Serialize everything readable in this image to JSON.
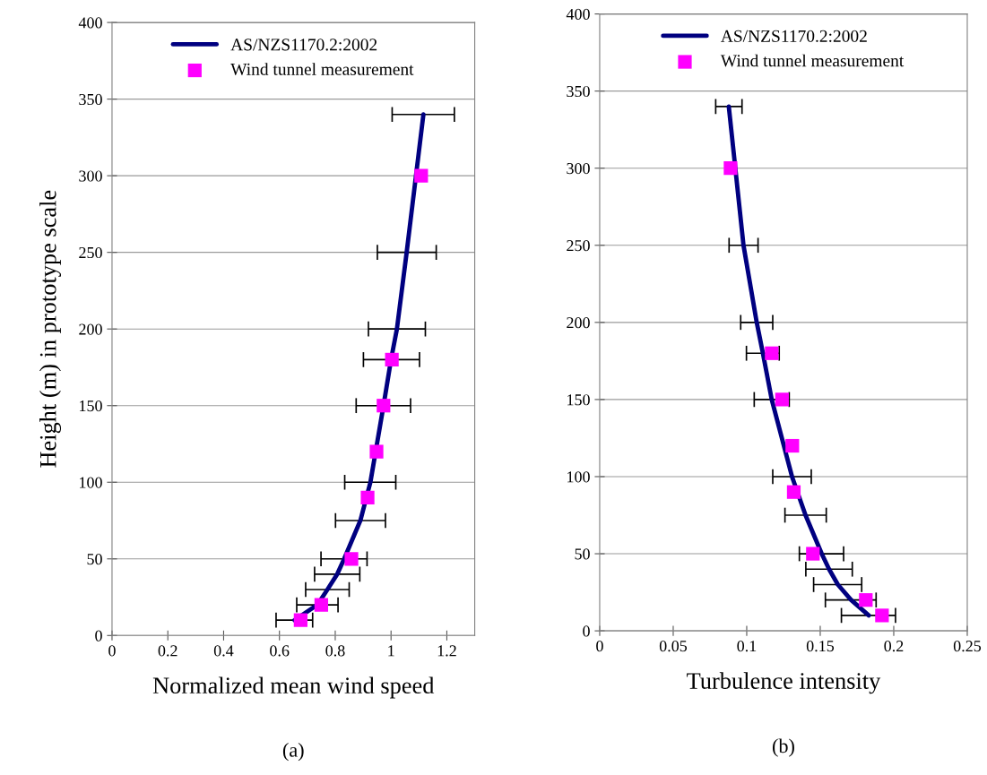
{
  "chart_data": [
    {
      "type": "line",
      "xlabel": "Normalized mean wind speed",
      "ylabel": "Height (m) in prototype scale",
      "annotations": [
        "(a)"
      ],
      "xlim": [
        0,
        1.3
      ],
      "xticks": [
        0,
        0.2,
        0.4,
        0.6,
        0.8,
        1,
        1.2
      ],
      "ylim": [
        0,
        400
      ],
      "yticks": [
        0,
        50,
        100,
        150,
        200,
        250,
        300,
        350,
        400
      ],
      "grid": "y",
      "legend": "top",
      "series": [
        {
          "name": "AS/NZS1170.2:2002",
          "color": "#000080",
          "marker": "none",
          "line_style": "solid",
          "x": [
            0.654,
            0.736,
            0.772,
            0.807,
            0.832,
            0.89,
            0.926,
            0.973,
            1.0,
            1.021,
            1.056,
            1.116
          ],
          "values": [
            10,
            20,
            30,
            40,
            50,
            75,
            100,
            150,
            180,
            200,
            250,
            340
          ],
          "xerrors": [
            [
              0.588,
              0.719
            ],
            [
              0.662,
              0.81
            ],
            [
              0.694,
              0.85
            ],
            [
              0.726,
              0.888
            ],
            [
              0.749,
              0.914
            ],
            [
              0.801,
              0.98
            ],
            [
              0.834,
              1.017
            ],
            [
              0.875,
              1.07
            ],
            [
              0.901,
              1.102
            ],
            [
              0.919,
              1.123
            ],
            [
              0.951,
              1.162
            ],
            [
              1.004,
              1.227
            ]
          ]
        },
        {
          "name": "Wind tunnel measurement",
          "type": "scatter",
          "color": "#ff00ff",
          "marker": "square",
          "x": [
            0.676,
            0.75,
            0.858,
            0.916,
            0.948,
            0.973,
            1.003,
            1.108
          ],
          "values": [
            10,
            20,
            50,
            90,
            120,
            150,
            180,
            300
          ]
        }
      ]
    },
    {
      "type": "line",
      "xlabel": "Turbulence intensity",
      "annotations": [
        "(b)"
      ],
      "xlim": [
        0,
        0.25
      ],
      "xticks": [
        0,
        0.05,
        0.1,
        0.15,
        0.2,
        0.25
      ],
      "ylim": [
        0,
        400
      ],
      "yticks": [
        0,
        50,
        100,
        150,
        200,
        250,
        300,
        350,
        400
      ],
      "grid": "y",
      "legend": "top",
      "series": [
        {
          "name": "AS/NZS1170.2:2002",
          "color": "#000080",
          "marker": "none",
          "line_style": "solid",
          "x": [
            0.183,
            0.171,
            0.162,
            0.156,
            0.151,
            0.14,
            0.1308,
            0.117,
            0.111,
            0.1068,
            0.0978,
            0.0878
          ],
          "values": [
            10,
            20,
            30,
            40,
            50,
            75,
            100,
            150,
            180,
            200,
            250,
            340
          ],
          "xerrors": [
            [
              0.1644,
              0.2012
            ],
            [
              0.1535,
              0.188
            ],
            [
              0.1455,
              0.1782
            ],
            [
              0.1402,
              0.1718
            ],
            [
              0.1358,
              0.1659
            ],
            [
              0.126,
              0.1541
            ],
            [
              0.1177,
              0.1439
            ],
            [
              0.1051,
              0.1289
            ],
            [
              0.0998,
              0.1221
            ],
            [
              0.0959,
              0.1177
            ],
            [
              0.088,
              0.1077
            ],
            [
              0.0789,
              0.0968
            ]
          ]
        },
        {
          "name": "Wind tunnel measurement",
          "type": "scatter",
          "color": "#ff00ff",
          "marker": "square",
          "x": [
            0.192,
            0.181,
            0.145,
            0.132,
            0.131,
            0.124,
            0.117,
            0.089
          ],
          "values": [
            10,
            20,
            50,
            90,
            120,
            150,
            180,
            300
          ]
        }
      ]
    }
  ]
}
